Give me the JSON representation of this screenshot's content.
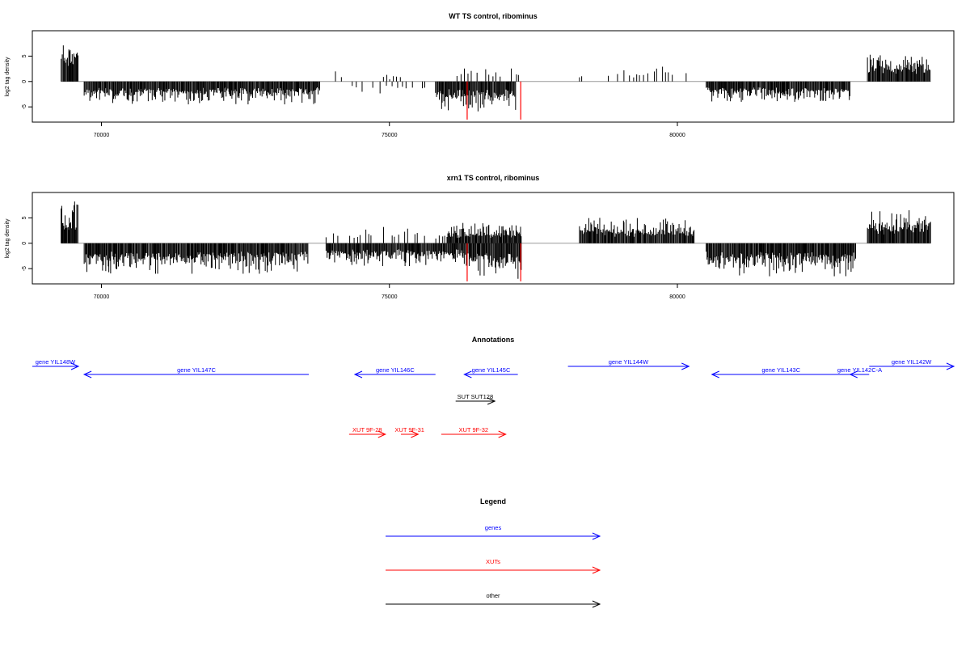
{
  "colors": {
    "genes": "#0000ff",
    "xuts": "#ff0000",
    "other": "#000000",
    "bars": "#000000",
    "frame": "#000000",
    "baseline": "#999999",
    "marker": "#ff0000"
  },
  "chart_data": [
    {
      "type": "bar",
      "title": "WT TS control, ribominus",
      "ylabel": "log2 tag density",
      "xlim": [
        68800,
        84800
      ],
      "ylim": [
        -8,
        10
      ],
      "xticks": [
        70000,
        75000,
        80000
      ],
      "yticks": [
        -5,
        0,
        5
      ],
      "grid": false,
      "marker_positions": [
        76350,
        77280
      ],
      "marker_depth": -7.5,
      "segments": [
        {
          "from": 69300,
          "to": 69600,
          "strand": "+",
          "max": 8.5
        },
        {
          "from": 69700,
          "to": 73800,
          "strand": "-",
          "max": 4.5
        },
        {
          "from": 73900,
          "to": 74300,
          "strand": "+",
          "max": 2.5,
          "sparse": true
        },
        {
          "from": 74300,
          "to": 75700,
          "strand": "-",
          "max": 2.5,
          "sparse": true
        },
        {
          "from": 74700,
          "to": 75200,
          "strand": "+",
          "max": 1.5,
          "sparse": true
        },
        {
          "from": 75800,
          "to": 77200,
          "strand": "-",
          "max": 6.0
        },
        {
          "from": 76100,
          "to": 77300,
          "strand": "+",
          "max": 3.0,
          "sparse": true
        },
        {
          "from": 78300,
          "to": 78400,
          "strand": "+",
          "max": 2.0,
          "sparse": true
        },
        {
          "from": 78800,
          "to": 80300,
          "strand": "+",
          "max": 3.0,
          "sparse": true
        },
        {
          "from": 80500,
          "to": 83000,
          "strand": "-",
          "max": 4.0
        },
        {
          "from": 83300,
          "to": 84400,
          "strand": "+",
          "max": 5.5
        }
      ]
    },
    {
      "type": "bar",
      "title": "xrn1 TS control, ribominus",
      "ylabel": "log2 tag density",
      "xlim": [
        68800,
        84800
      ],
      "ylim": [
        -8,
        10
      ],
      "xticks": [
        70000,
        75000,
        80000
      ],
      "yticks": [
        -5,
        0,
        5
      ],
      "grid": false,
      "marker_positions": [
        76350,
        77280
      ],
      "marker_depth": -7.5,
      "segments": [
        {
          "from": 69300,
          "to": 69600,
          "strand": "+",
          "max": 9.0
        },
        {
          "from": 69700,
          "to": 73600,
          "strand": "-",
          "max": 6.0
        },
        {
          "from": 73900,
          "to": 76000,
          "strand": "+",
          "max": 3.5,
          "sparse": true
        },
        {
          "from": 73900,
          "to": 76300,
          "strand": "-",
          "max": 4.5
        },
        {
          "from": 76000,
          "to": 77300,
          "strand": "+",
          "max": 4.0
        },
        {
          "from": 76300,
          "to": 77300,
          "strand": "-",
          "max": 7.0
        },
        {
          "from": 78300,
          "to": 80300,
          "strand": "+",
          "max": 5.0
        },
        {
          "from": 80500,
          "to": 83100,
          "strand": "-",
          "max": 6.5
        },
        {
          "from": 83300,
          "to": 84400,
          "strand": "+",
          "max": 6.5
        }
      ]
    }
  ],
  "annotations": {
    "title": "Annotations",
    "items": [
      {
        "label": "gene YIL148W",
        "kind": "genes",
        "start": 68800,
        "end": 69600,
        "dir": "right",
        "row": 0
      },
      {
        "label": "gene YIL147C",
        "kind": "genes",
        "start": 69700,
        "end": 73600,
        "dir": "left",
        "row": 1
      },
      {
        "label": "gene YIL146C",
        "kind": "genes",
        "start": 74400,
        "end": 75800,
        "dir": "left",
        "row": 1
      },
      {
        "label": "gene YIL145C",
        "kind": "genes",
        "start": 76300,
        "end": 77230,
        "dir": "left",
        "row": 1
      },
      {
        "label": "gene YIL144W",
        "kind": "genes",
        "start": 78100,
        "end": 80200,
        "dir": "right",
        "row": 0
      },
      {
        "label": "gene YIL143C",
        "kind": "genes",
        "start": 80600,
        "end": 83000,
        "dir": "left",
        "row": 1
      },
      {
        "label": "gene YIL142C-A",
        "kind": "genes",
        "start": 83000,
        "end": 83330,
        "dir": "left",
        "row": 1
      },
      {
        "label": "gene YIL142W",
        "kind": "genes",
        "start": 83330,
        "end": 84800,
        "dir": "right",
        "row": 0
      },
      {
        "label": "SUT SUT128",
        "kind": "other",
        "start": 76150,
        "end": 76830,
        "dir": "right",
        "row": 2
      },
      {
        "label": "XUT 9F-28",
        "kind": "xuts",
        "start": 74300,
        "end": 74930,
        "dir": "right",
        "row": 3
      },
      {
        "label": "XUT 9F-31",
        "kind": "xuts",
        "start": 75200,
        "end": 75500,
        "dir": "right",
        "row": 3
      },
      {
        "label": "XUT 9F-32",
        "kind": "xuts",
        "start": 75900,
        "end": 77020,
        "dir": "right",
        "row": 3
      }
    ]
  },
  "legend": {
    "title": "Legend",
    "items": [
      {
        "label": "genes",
        "kind": "genes"
      },
      {
        "label": "XUTs",
        "kind": "xuts"
      },
      {
        "label": "other",
        "kind": "other"
      }
    ]
  }
}
